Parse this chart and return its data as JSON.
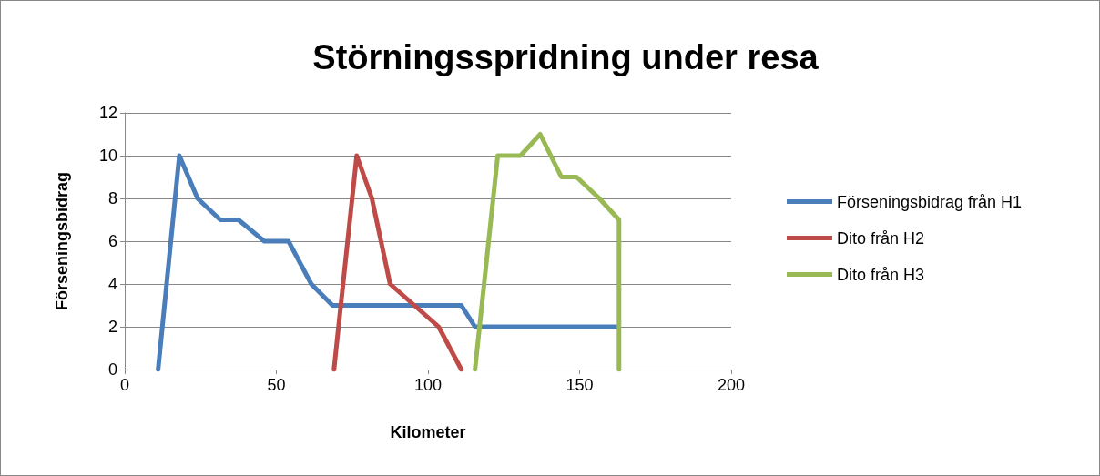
{
  "chart_data": {
    "type": "line",
    "title": "Störningsspridning under resa",
    "xlabel": "Kilometer",
    "ylabel": "Förseningsbidrag",
    "xlim": [
      0,
      200
    ],
    "xticks": [
      0,
      50,
      100,
      150,
      200
    ],
    "ylim": [
      0,
      12
    ],
    "yticks": [
      0,
      2,
      4,
      6,
      8,
      10,
      12
    ],
    "grid": "y",
    "legend": "right",
    "marker": "none",
    "line_style": "solid",
    "series": [
      {
        "name": "Förseningsbidrag från H1",
        "color": "#4a7ebb",
        "x": [
          11,
          18,
          24,
          31.5,
          37.5,
          46,
          54,
          61.5,
          68.5,
          111,
          115.5,
          162.5
        ],
        "values": [
          0,
          10,
          8,
          7,
          7,
          6,
          6,
          4,
          3,
          3,
          2,
          2
        ]
      },
      {
        "name": "Dito från H2",
        "color": "#be4b48",
        "x": [
          69,
          76.5,
          81.5,
          87.5,
          103.5,
          111
        ],
        "values": [
          0,
          10,
          8,
          4,
          2,
          0
        ]
      },
      {
        "name": "Dito från H3",
        "color": "#98b954",
        "x": [
          115.5,
          123,
          130.5,
          137,
          144,
          149,
          156.5,
          163,
          163
        ],
        "values": [
          0,
          10,
          10,
          11,
          9,
          9,
          8,
          7,
          0
        ]
      }
    ]
  }
}
